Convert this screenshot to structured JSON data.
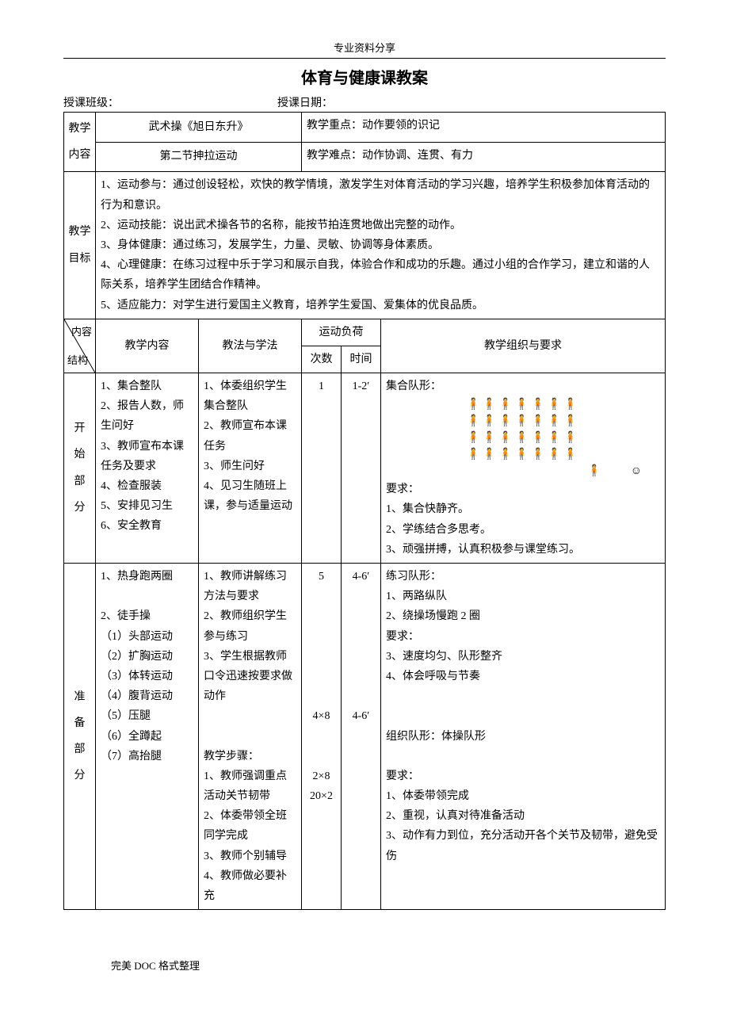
{
  "header": "专业资料分享",
  "title": "体育与健康课教案",
  "meta": {
    "classLabel": "授课班级：",
    "dateLabel": "授课日期："
  },
  "row1": {
    "col1a": "教学",
    "col1b": "内容",
    "col2": "武术操《旭日东升》",
    "col3": "教学重点：动作要领的识记",
    "col4": "第二节抻拉运动",
    "col5": "教学难点：动作协调、连贯、有力"
  },
  "goals": {
    "label1": "教学",
    "label2": "目标",
    "text": "1、运动参与：通过创设轻松，欢快的教学情境，激发学生对体育活动的学习兴趣，培养学生积极参加体育活动的行为和意识。\n2、运动技能：说出武术操各节的名称，能按节拍连贯地做出完整的动作。\n3、身体健康：通过练习，发展学生，力量、灵敏、协调等身体素质。\n4、心理健康：在练习过程中乐于学习和展示自我，体验合作和成功的乐趣。通过小组的合作学习，建立和谐的人际关系，培养学生团结合作精神。\n5、适应能力：对学生进行爱国主义教育，培养学生爱国、爱集体的优良品质。"
  },
  "headers": {
    "diagTop": "内容",
    "diagBot": "结构",
    "content": "教学内容",
    "method": "教法与学法",
    "load": "运动负荷",
    "count": "次数",
    "time": "时间",
    "org": "教学组织与要求"
  },
  "section1": {
    "label": [
      "开",
      "始",
      "部",
      "分"
    ],
    "content": "1、集合整队\n2、报告人数，师生问好\n3、教师宣布本课任务及要求\n4、检查服装\n5、安排见习生\n6、安全教育",
    "method": "1、体委组织学生集合整队\n2、教师宣布本课任务\n3、师生问好\n4、见习生随班上课，参与适量运动",
    "count": "1",
    "time": "1-2′",
    "orgTitle": "集合队形：",
    "orgReqTitle": "要求：",
    "orgReq": "1、集合快静齐。\n2、学练结合多思考。\n3、顽强拼搏，认真积极参与课堂练习。"
  },
  "section2": {
    "label": [
      "准",
      "备",
      "部",
      "分"
    ],
    "content": "1、热身跑两圈\n\n2、徒手操\n（1）头部运动\n（2）扩胸运动\n（3）体转运动\n（4）腹背运动\n（5）压腿\n（6）全蹲起\n（7）高抬腿",
    "method1": "1、教师讲解练习方法与要求\n2、教师组织学生参与练习\n3、学生根据教师口令迅速按要求做动作",
    "method2Title": "教学步骤：",
    "method2": "1、教师强调重点活动关节韧带\n2、体委带领全班同学完成\n3、教师个别辅导\n4、教师做必要补充",
    "count1": "5",
    "time1": "4-6′",
    "count2": "4×8",
    "time2": "4-6′",
    "count3": "2×8",
    "count4": "20×2",
    "org1Title": "练习队形：",
    "org1": "1、两路纵队\n2、绕操场慢跑 2 圈\n要求：\n3、速度均匀、队形整齐\n4、体会呼吸与节奏",
    "org2Title": "组织队形：体操队形",
    "org2ReqTitle": "要求：",
    "org2": "1、体委带领完成\n2、重视，认真对待准备活动\n3、动作有力到位，充分活动开各个关节及韧带，避免受伤"
  },
  "footer": "完美 DOC 格式整理"
}
